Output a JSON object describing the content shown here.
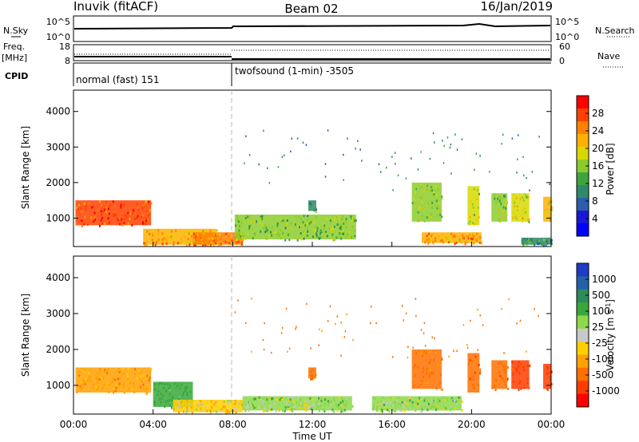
{
  "header": {
    "station": "Inuvik (fitACF)",
    "beam": "Beam 02",
    "date": "16/Jan/2019"
  },
  "top_panels": {
    "nsky_label": "N.Sky",
    "nsky_ticks": [
      "10^5",
      "10^0"
    ],
    "nsearch_label": "N.Search",
    "nsearch_ticks": [
      "10^5",
      "10^0"
    ],
    "freq_label": "Freq.",
    "freq_unit": "[MHz]",
    "freq_ticks": [
      "18",
      "8"
    ],
    "nave_label": "Nave",
    "nave_ticks": [
      "60",
      "0"
    ],
    "cpid_label": "CPID",
    "cpid_modes": [
      {
        "name": "normal (fast) 151",
        "start_hour": 0,
        "end_hour": 8
      },
      {
        "name": "twofsound (1-min) -3505",
        "start_hour": 8,
        "end_hour": 24
      }
    ]
  },
  "colorbars": {
    "power": {
      "label": "Power [dB]",
      "ticks": [
        "28",
        "24",
        "20",
        "16",
        "12",
        "8",
        "4"
      ],
      "colors": [
        "#ff0000",
        "#ff4000",
        "#ff8000",
        "#ffb000",
        "#d8d800",
        "#8ccc2a",
        "#3fa43f",
        "#2e8a6a",
        "#2c5cad",
        "#1818d8",
        "#0000ff"
      ]
    },
    "velocity": {
      "label": "Velocity [m s",
      "label_sup": "-1",
      "label_end": "]",
      "ticks": [
        "1000",
        "500",
        "100",
        "25",
        "-25",
        "-100",
        "-500",
        "-1000"
      ],
      "colors": [
        "#1e3cc8",
        "#2460a8",
        "#2e8a5a",
        "#38a83a",
        "#8cd84a",
        "#c8c8c8",
        "#ffd000",
        "#ffa000",
        "#ff7000",
        "#ff3c00",
        "#ff0000"
      ]
    }
  },
  "chart_data": [
    {
      "type": "heatmap",
      "name": "power",
      "xlabel": "Time UT",
      "ylabel": "Slant Range [km]",
      "xlim": [
        0,
        24
      ],
      "ylim": [
        200,
        4600
      ],
      "yticks": [
        "1000",
        "2000",
        "3000",
        "4000"
      ],
      "regions": [
        {
          "t0": 0.1,
          "t1": 3.9,
          "r0": 800,
          "r1": 1500,
          "value": 26
        },
        {
          "t0": 3.5,
          "t1": 7.2,
          "r0": 250,
          "r1": 700,
          "value": 22
        },
        {
          "t0": 6.0,
          "t1": 8.5,
          "r0": 250,
          "r1": 600,
          "value": 24
        },
        {
          "t0": 8.1,
          "t1": 14.2,
          "r0": 400,
          "r1": 1100,
          "value": 14
        },
        {
          "t0": 11.8,
          "t1": 12.2,
          "r0": 1200,
          "r1": 1500,
          "value": 10
        },
        {
          "t0": 17.0,
          "t1": 18.5,
          "r0": 900,
          "r1": 2000,
          "value": 16
        },
        {
          "t0": 17.5,
          "t1": 20.5,
          "r0": 300,
          "r1": 600,
          "value": 22
        },
        {
          "t0": 19.8,
          "t1": 20.4,
          "r0": 800,
          "r1": 1900,
          "value": 18
        },
        {
          "t0": 21.0,
          "t1": 21.8,
          "r0": 900,
          "r1": 1700,
          "value": 15
        },
        {
          "t0": 22.0,
          "t1": 22.9,
          "r0": 900,
          "r1": 1700,
          "value": 18
        },
        {
          "t0": 23.6,
          "t1": 24.0,
          "r0": 900,
          "r1": 1600,
          "value": 20
        },
        {
          "t0": 22.5,
          "t1": 24.0,
          "r0": 250,
          "r1": 450,
          "value": 10
        }
      ]
    },
    {
      "type": "heatmap",
      "name": "velocity",
      "xlabel": "Time UT",
      "ylabel": "Slant Range [km]",
      "xlim": [
        0,
        24
      ],
      "ylim": [
        200,
        4600
      ],
      "yticks": [
        "1000",
        "2000",
        "3000",
        "4000"
      ],
      "xticks": [
        "00:00",
        "04:00",
        "08:00",
        "12:00",
        "16:00",
        "20:00",
        "00:00"
      ],
      "regions": [
        {
          "t0": 0.1,
          "t1": 3.9,
          "r0": 800,
          "r1": 1500,
          "value": -60
        },
        {
          "t0": 4.0,
          "t1": 6.0,
          "r0": 400,
          "r1": 1100,
          "value": 150
        },
        {
          "t0": 5.0,
          "t1": 8.5,
          "r0": 250,
          "r1": 600,
          "value": 0
        },
        {
          "t0": 8.5,
          "t1": 14.0,
          "r0": 300,
          "r1": 700,
          "value": 60
        },
        {
          "t0": 11.8,
          "t1": 12.2,
          "r0": 1200,
          "r1": 1500,
          "value": -150
        },
        {
          "t0": 15.0,
          "t1": 19.5,
          "r0": 300,
          "r1": 700,
          "value": 60
        },
        {
          "t0": 17.0,
          "t1": 18.5,
          "r0": 900,
          "r1": 2000,
          "value": -120
        },
        {
          "t0": 19.8,
          "t1": 20.4,
          "r0": 800,
          "r1": 1900,
          "value": -250
        },
        {
          "t0": 21.0,
          "t1": 21.8,
          "r0": 900,
          "r1": 1700,
          "value": -200
        },
        {
          "t0": 22.0,
          "t1": 22.9,
          "r0": 900,
          "r1": 1700,
          "value": -300
        },
        {
          "t0": 23.6,
          "t1": 24.0,
          "r0": 900,
          "r1": 1600,
          "value": -400
        }
      ]
    }
  ]
}
